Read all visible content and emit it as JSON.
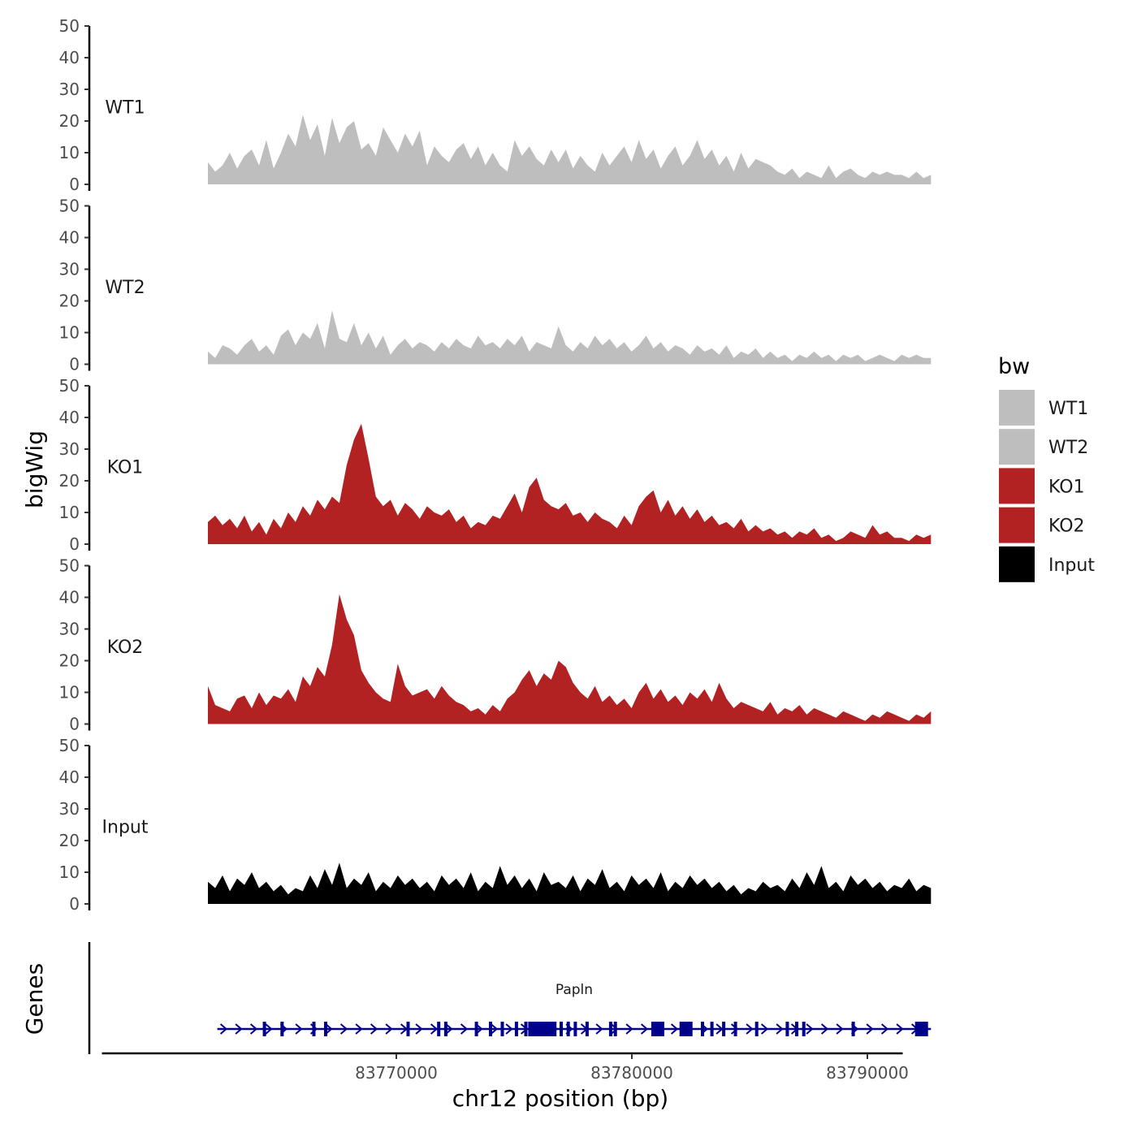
{
  "chart_data": {
    "type": "area",
    "title": "",
    "chromosome": "chr12",
    "xlabel": "chr12 position (bp)",
    "ylabel": "bigWig",
    "genes_label": "Genes",
    "ylim": [
      0,
      50
    ],
    "yticks": [
      0,
      10,
      20,
      30,
      40,
      50
    ],
    "xlim": [
      83757500,
      83791500
    ],
    "xticks": [
      83770000,
      83780000,
      83790000
    ],
    "xtick_labels": [
      "83770000",
      "83780000",
      "83790000"
    ],
    "track_start": 83762000,
    "track_end": 83792700,
    "legend": {
      "title": "bw",
      "position": "right",
      "entries": [
        {
          "name": "WT1",
          "color": "#bebebe"
        },
        {
          "name": "WT2",
          "color": "#bebebe"
        },
        {
          "name": "KO1",
          "color": "#b22222"
        },
        {
          "name": "KO2",
          "color": "#b22222"
        },
        {
          "name": "Input",
          "color": "#000000"
        }
      ]
    },
    "series": [
      {
        "name": "WT1",
        "color": "#bebebe",
        "values": [
          7,
          4,
          6,
          10,
          5,
          9,
          11,
          6,
          14,
          5,
          10,
          16,
          12,
          22,
          14,
          19,
          9,
          21,
          13,
          18,
          20,
          11,
          13,
          9,
          18,
          14,
          10,
          16,
          12,
          17,
          6,
          12,
          9,
          7,
          11,
          13,
          8,
          12,
          6,
          10,
          6,
          4,
          14,
          9,
          12,
          8,
          6,
          11,
          7,
          11,
          5,
          9,
          6,
          4,
          10,
          6,
          9,
          12,
          7,
          14,
          8,
          11,
          5,
          9,
          12,
          6,
          9,
          14,
          8,
          11,
          6,
          9,
          4,
          10,
          5,
          8,
          7,
          6,
          4,
          3,
          5,
          2,
          4,
          3,
          2,
          6,
          2,
          4,
          5,
          3,
          2,
          4,
          3,
          4,
          3,
          3,
          2,
          4,
          2,
          3
        ]
      },
      {
        "name": "WT2",
        "color": "#bebebe",
        "values": [
          4,
          2,
          6,
          5,
          3,
          6,
          8,
          4,
          6,
          3,
          9,
          11,
          6,
          10,
          8,
          13,
          5,
          17,
          8,
          7,
          13,
          6,
          10,
          5,
          9,
          3,
          6,
          8,
          5,
          7,
          6,
          4,
          7,
          5,
          8,
          6,
          5,
          9,
          6,
          7,
          5,
          8,
          6,
          9,
          4,
          7,
          6,
          5,
          12,
          6,
          4,
          7,
          5,
          9,
          6,
          8,
          5,
          7,
          4,
          6,
          9,
          5,
          7,
          4,
          6,
          5,
          3,
          6,
          4,
          5,
          3,
          6,
          2,
          4,
          3,
          5,
          2,
          4,
          2,
          3,
          1,
          3,
          2,
          4,
          2,
          3,
          1,
          3,
          2,
          3,
          1,
          2,
          3,
          2,
          1,
          3,
          2,
          3,
          2,
          2
        ]
      },
      {
        "name": "KO1",
        "color": "#b22222",
        "values": [
          7,
          9,
          6,
          8,
          5,
          9,
          4,
          7,
          3,
          8,
          5,
          10,
          7,
          12,
          9,
          14,
          11,
          15,
          13,
          25,
          33,
          38,
          27,
          15,
          12,
          14,
          9,
          13,
          11,
          8,
          12,
          10,
          9,
          11,
          7,
          9,
          5,
          7,
          6,
          9,
          8,
          12,
          16,
          10,
          18,
          21,
          14,
          12,
          11,
          13,
          9,
          10,
          7,
          10,
          8,
          7,
          5,
          9,
          6,
          12,
          15,
          17,
          10,
          14,
          9,
          12,
          8,
          11,
          7,
          9,
          6,
          7,
          5,
          8,
          4,
          6,
          4,
          5,
          3,
          4,
          2,
          4,
          3,
          5,
          2,
          3,
          1,
          2,
          4,
          3,
          2,
          6,
          3,
          4,
          2,
          2,
          1,
          3,
          2,
          3
        ]
      },
      {
        "name": "KO2",
        "color": "#b22222",
        "values": [
          12,
          6,
          5,
          4,
          8,
          9,
          5,
          10,
          6,
          9,
          8,
          11,
          7,
          15,
          12,
          18,
          15,
          25,
          41,
          33,
          28,
          17,
          13,
          10,
          8,
          7,
          19,
          12,
          9,
          10,
          11,
          8,
          12,
          9,
          7,
          6,
          4,
          5,
          3,
          6,
          4,
          8,
          10,
          14,
          17,
          12,
          16,
          14,
          20,
          18,
          13,
          10,
          8,
          12,
          7,
          9,
          6,
          8,
          5,
          10,
          13,
          8,
          11,
          7,
          9,
          6,
          10,
          8,
          11,
          7,
          13,
          8,
          5,
          7,
          6,
          5,
          4,
          7,
          3,
          5,
          4,
          6,
          3,
          5,
          4,
          3,
          2,
          4,
          3,
          2,
          1,
          3,
          2,
          4,
          3,
          2,
          1,
          3,
          2,
          4
        ]
      },
      {
        "name": "Input",
        "color": "#000000",
        "values": [
          7,
          5,
          9,
          4,
          8,
          6,
          10,
          5,
          7,
          4,
          6,
          3,
          5,
          4,
          9,
          5,
          11,
          6,
          13,
          5,
          8,
          6,
          10,
          4,
          7,
          5,
          9,
          6,
          8,
          5,
          7,
          4,
          9,
          6,
          8,
          5,
          10,
          4,
          7,
          5,
          12,
          6,
          9,
          5,
          8,
          4,
          10,
          6,
          7,
          5,
          9,
          4,
          8,
          6,
          11,
          5,
          7,
          4,
          9,
          6,
          8,
          5,
          10,
          4,
          7,
          5,
          9,
          6,
          8,
          5,
          7,
          4,
          6,
          3,
          5,
          4,
          7,
          5,
          6,
          4,
          8,
          5,
          10,
          6,
          12,
          5,
          7,
          4,
          9,
          6,
          8,
          5,
          7,
          4,
          6,
          5,
          8,
          4,
          6,
          5
        ]
      }
    ],
    "gene": {
      "name": "Papln",
      "color": "#00008b",
      "start": 83762400,
      "end": 83792700,
      "exons": [
        83764400,
        83765150,
        83766500,
        83767000,
        83770500,
        83771800,
        83772100,
        83773400,
        83774000,
        83774500,
        83775100,
        83775500,
        83775800,
        83776150,
        83776700,
        83777000,
        83777300,
        83777600,
        83778100,
        83779100,
        83779300,
        83781200,
        83782400,
        83783000,
        83783400,
        83783900,
        83784400,
        83785300,
        83786600,
        83787000,
        83787300,
        83789400,
        83792400
      ],
      "wide_exons": [
        83775900,
        83776500,
        83781100,
        83782300,
        83792300
      ]
    }
  }
}
